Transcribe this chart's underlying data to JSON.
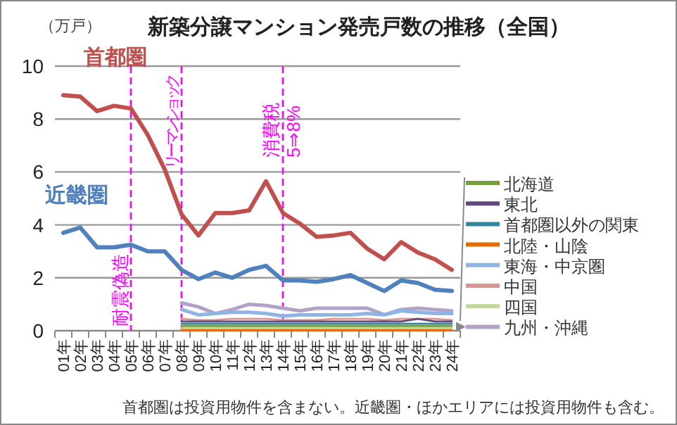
{
  "chart_data": {
    "type": "line",
    "title": "新築分譲マンション発売戸数の推移（全国）",
    "ylabel": "（万戸）",
    "categories": [
      "01年",
      "02年",
      "03年",
      "04年",
      "05年",
      "06年",
      "07年",
      "08年",
      "09年",
      "10年",
      "11年",
      "12年",
      "13年",
      "14年",
      "15年",
      "16年",
      "17年",
      "18年",
      "19年",
      "20年",
      "21年",
      "22年",
      "23年",
      "24年"
    ],
    "series": [
      {
        "name": "首都圏",
        "color": "#c0504d",
        "values": [
          8.9,
          8.85,
          8.3,
          8.5,
          8.4,
          7.4,
          6.1,
          4.4,
          3.6,
          4.45,
          4.45,
          4.55,
          5.65,
          4.45,
          4.05,
          3.55,
          3.6,
          3.7,
          3.1,
          2.7,
          3.35,
          2.95,
          2.7,
          2.3
        ]
      },
      {
        "name": "近畿圏",
        "color": "#4f81bd",
        "values": [
          3.7,
          3.9,
          3.15,
          3.15,
          3.25,
          3.0,
          3.0,
          2.3,
          1.95,
          2.2,
          2.0,
          2.3,
          2.45,
          1.9,
          1.9,
          1.85,
          1.95,
          2.1,
          1.8,
          1.5,
          1.9,
          1.8,
          1.55,
          1.5
        ]
      },
      {
        "name": "北海道",
        "color": "#77a03c",
        "values": [
          null,
          null,
          null,
          null,
          null,
          null,
          null,
          0.18,
          0.18,
          0.18,
          0.18,
          0.18,
          0.18,
          0.18,
          0.18,
          0.18,
          0.18,
          0.18,
          0.18,
          0.18,
          0.18,
          0.18,
          0.18,
          0.18
        ]
      },
      {
        "name": "東北",
        "color": "#604a7b",
        "values": [
          null,
          null,
          null,
          null,
          null,
          null,
          null,
          0.35,
          0.35,
          0.35,
          0.35,
          0.35,
          0.35,
          0.35,
          0.35,
          0.35,
          0.35,
          0.35,
          0.35,
          0.35,
          0.35,
          0.45,
          0.35,
          0.35
        ]
      },
      {
        "name": "首都圏以外の関東",
        "color": "#31859c",
        "values": [
          null,
          null,
          null,
          null,
          null,
          null,
          null,
          0.26,
          0.26,
          0.26,
          0.26,
          0.26,
          0.26,
          0.26,
          0.26,
          0.26,
          0.26,
          0.26,
          0.26,
          0.26,
          0.26,
          0.26,
          0.26,
          0.26
        ]
      },
      {
        "name": "北陸・山陰",
        "color": "#e46c0a",
        "values": [
          null,
          null,
          null,
          null,
          null,
          null,
          null,
          0.02,
          0.02,
          0.02,
          0.02,
          0.02,
          0.02,
          0.02,
          0.02,
          0.02,
          0.02,
          0.02,
          0.02,
          0.02,
          0.02,
          0.02,
          0.02,
          0.02
        ]
      },
      {
        "name": "東海・中京圏",
        "color": "#8eb4e3",
        "values": [
          null,
          null,
          null,
          null,
          null,
          null,
          null,
          0.8,
          0.6,
          0.65,
          0.7,
          0.7,
          0.65,
          0.55,
          0.6,
          0.6,
          0.6,
          0.6,
          0.65,
          0.6,
          0.75,
          0.7,
          0.65,
          0.65
        ]
      },
      {
        "name": "中国",
        "color": "#d99694",
        "values": [
          null,
          null,
          null,
          null,
          null,
          null,
          null,
          0.45,
          0.4,
          0.4,
          0.45,
          0.45,
          0.45,
          0.4,
          0.4,
          0.4,
          0.45,
          0.45,
          0.45,
          0.4,
          0.45,
          0.45,
          0.45,
          0.4
        ]
      },
      {
        "name": "四国",
        "color": "#c3d69b",
        "values": [
          null,
          null,
          null,
          null,
          null,
          null,
          null,
          0.1,
          0.1,
          0.1,
          0.1,
          0.1,
          0.1,
          0.1,
          0.1,
          0.1,
          0.1,
          0.1,
          0.1,
          0.1,
          0.1,
          0.1,
          0.1,
          0.1
        ]
      },
      {
        "name": "九州・沖縄",
        "color": "#b3a2c7",
        "values": [
          null,
          null,
          null,
          null,
          null,
          null,
          null,
          1.05,
          0.9,
          0.65,
          0.8,
          1.0,
          0.95,
          0.85,
          0.75,
          0.85,
          0.85,
          0.85,
          0.85,
          0.6,
          0.8,
          0.85,
          0.8,
          0.75
        ]
      }
    ],
    "ylim": [
      0,
      10
    ],
    "yticks": [
      0,
      2,
      4,
      6,
      8,
      10
    ],
    "grid": "y",
    "legend": "right",
    "ref_lines": [
      {
        "axis": "x",
        "value": "05年",
        "label": "耐震偽造",
        "color": "#ff00ff",
        "line_style": "dashed"
      },
      {
        "axis": "x",
        "value": "08年",
        "label": "リーマンショック",
        "color": "#ff00ff",
        "line_style": "dashed"
      },
      {
        "axis": "x",
        "value": "14年",
        "label": "消費税\n5⇒8%",
        "color": "#ff00ff",
        "line_style": "dashed"
      }
    ],
    "annotations": [
      "首都圏は投資用物件を含まない。近畿圏・ほかエリアには投資用物件も含む。"
    ]
  }
}
